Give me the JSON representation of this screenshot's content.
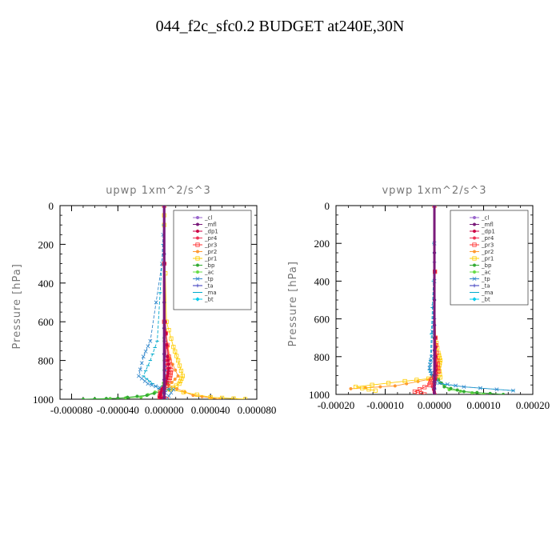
{
  "title": "044_f2c_sfc0.2  BUDGET at240E,30N",
  "legend": [
    {
      "name": "_cl",
      "color": "#9966cc",
      "marker": "circle"
    },
    {
      "name": "_mfl",
      "color": "#7a1a7a",
      "marker": "circle"
    },
    {
      "name": "_dp1",
      "color": "#cc0044",
      "marker": "circle"
    },
    {
      "name": "_pr4",
      "color": "#ee3355",
      "marker": "circle"
    },
    {
      "name": "_pr3",
      "color": "#ff3333",
      "marker": "square"
    },
    {
      "name": "_pr2",
      "color": "#ff9933",
      "marker": "circle"
    },
    {
      "name": "_pr1",
      "color": "#ffcc00",
      "marker": "square"
    },
    {
      "name": "_bp",
      "color": "#33aa33",
      "marker": "circle"
    },
    {
      "name": "_ac",
      "color": "#66dd44",
      "marker": "circle"
    },
    {
      "name": "_tp",
      "color": "#3388cc",
      "marker": "x"
    },
    {
      "name": "_ta",
      "color": "#3333bb",
      "marker": "plus"
    },
    {
      "name": "_ma",
      "color": "#00aacc",
      "marker": "dash"
    },
    {
      "name": "_bt",
      "color": "#00ccee",
      "marker": "diamond"
    }
  ],
  "chart_data": [
    {
      "type": "line",
      "title": "upwp   1xm^2/s^3",
      "ylabel": "Pressure [hPa]",
      "xlabel": "",
      "xlim": [
        -9e-05,
        8e-05
      ],
      "ylim": [
        1000,
        0
      ],
      "xticks": [
        -8e-05,
        -4e-05,
        0.0,
        4e-05,
        8e-05
      ],
      "xtick_labels": [
        "-0.000080",
        "-0.000040",
        "0.000000",
        "0.000040",
        "0.000080"
      ],
      "yticks": [
        0,
        200,
        400,
        600,
        800,
        1000
      ],
      "ytick_labels": [
        "0",
        "200",
        "400",
        "600",
        "800",
        "1000"
      ],
      "grid": false,
      "legend_position": "top-right",
      "series": [
        {
          "name": "_cl",
          "x": [
            0,
            0,
            0,
            0
          ],
          "y": [
            0,
            500,
            900,
            1000
          ]
        },
        {
          "name": "_mfl",
          "x": [
            0,
            0,
            0,
            0
          ],
          "y": [
            0,
            500,
            900,
            1000
          ]
        },
        {
          "name": "_dp1",
          "x": [
            0,
            1e-06,
            3e-06,
            4e-06,
            3e-06,
            1e-06,
            -2e-06,
            -4e-06,
            0
          ],
          "y": [
            0,
            600,
            780,
            840,
            880,
            920,
            950,
            990,
            1000
          ]
        },
        {
          "name": "_pr4",
          "x": [
            0,
            0,
            2e-06,
            3e-06,
            1e-06,
            -3e-06,
            -2e-06
          ],
          "y": [
            0,
            600,
            800,
            860,
            920,
            970,
            1000
          ]
        },
        {
          "name": "_pr3",
          "x": [
            0,
            0,
            4e-06,
            6e-06,
            5e-06,
            2e-06,
            -3e-06,
            -4e-06,
            2e-06
          ],
          "y": [
            0,
            600,
            780,
            850,
            890,
            930,
            960,
            990,
            1000
          ]
        },
        {
          "name": "_pr2",
          "x": [
            0,
            0,
            5e-06,
            1.2e-05,
            4e-06,
            2.5e-05,
            4.8e-05
          ],
          "y": [
            0,
            600,
            790,
            880,
            930,
            980,
            1000
          ]
        },
        {
          "name": "_pr1",
          "x": [
            0,
            0,
            2e-06,
            8e-06,
            1.2e-05,
            1.6e-05,
            1.3e-05,
            5e-06,
            4e-05,
            7e-05
          ],
          "y": [
            0,
            100,
            600,
            730,
            800,
            880,
            920,
            950,
            990,
            1000
          ]
        },
        {
          "name": "_bp",
          "x": [
            0,
            0,
            0,
            4e-06,
            -1.5e-05,
            -4e-05,
            -7e-05
          ],
          "y": [
            0,
            600,
            850,
            950,
            980,
            995,
            1000
          ]
        },
        {
          "name": "_ac",
          "x": [
            0,
            0,
            0,
            -2e-06,
            -2e-05,
            -6e-05
          ],
          "y": [
            0,
            600,
            900,
            950,
            990,
            1000
          ]
        },
        {
          "name": "_tp",
          "x": [
            0,
            -2e-06,
            -1.2e-05,
            -1.8e-05,
            -2.2e-05,
            -1.4e-05,
            -4e-06,
            8e-06,
            2e-06
          ],
          "y": [
            0,
            300,
            700,
            780,
            880,
            920,
            940,
            950,
            1000
          ]
        },
        {
          "name": "_ta",
          "x": [
            0,
            0,
            2e-06,
            1e-06,
            0
          ],
          "y": [
            0,
            600,
            900,
            960,
            1000
          ]
        },
        {
          "name": "_ma",
          "x": [
            0,
            -1e-06,
            -6e-06,
            -1.2e-05,
            -1.8e-05,
            -1e-05,
            -2e-06,
            2e-06
          ],
          "y": [
            0,
            200,
            700,
            800,
            880,
            920,
            960,
            1000
          ]
        },
        {
          "name": "_bt",
          "x": [
            0,
            0,
            0,
            0
          ],
          "y": [
            0,
            500,
            900,
            1000
          ]
        }
      ]
    },
    {
      "type": "line",
      "title": "vpwp   1xm^2/s^3",
      "ylabel": "Pressure [hPa]",
      "xlabel": "",
      "xlim": [
        -0.0002,
        0.0002
      ],
      "ylim": [
        1000,
        0
      ],
      "xticks": [
        -0.0002,
        -0.0001,
        0.0,
        0.0001,
        0.0002
      ],
      "xtick_labels": [
        "-0.00020",
        "-0.00010",
        "0.00000",
        "0.00010",
        "0.00020"
      ],
      "yticks": [
        0,
        200,
        400,
        600,
        800,
        1000
      ],
      "ytick_labels": [
        "0",
        "200",
        "400",
        "600",
        "800",
        "1000"
      ],
      "grid": false,
      "legend_position": "top-right",
      "series": [
        {
          "name": "_cl",
          "x": [
            0,
            0,
            0,
            0
          ],
          "y": [
            0,
            500,
            900,
            1000
          ]
        },
        {
          "name": "_mfl",
          "x": [
            0,
            0,
            0,
            0
          ],
          "y": [
            0,
            500,
            900,
            1000
          ]
        },
        {
          "name": "_dp1",
          "x": [
            0,
            2e-06,
            3e-06,
            2e-06,
            -1e-06,
            0
          ],
          "y": [
            0,
            700,
            850,
            920,
            970,
            1000
          ]
        },
        {
          "name": "_pr4",
          "x": [
            0,
            2e-06,
            4e-06,
            3e-06,
            -4e-06,
            2e-06
          ],
          "y": [
            0,
            700,
            840,
            910,
            960,
            1000
          ]
        },
        {
          "name": "_pr3",
          "x": [
            0,
            2e-06,
            6e-06,
            8e-06,
            -5e-06,
            -1e-05,
            -4e-05,
            -2e-05
          ],
          "y": [
            0,
            700,
            820,
            880,
            920,
            950,
            985,
            1000
          ]
        },
        {
          "name": "_pr2",
          "x": [
            0,
            2e-06,
            5e-06,
            -1e-05,
            -8e-05,
            -0.00017
          ],
          "y": [
            0,
            700,
            860,
            920,
            955,
            970
          ]
        },
        {
          "name": "_pr1",
          "x": [
            0,
            2e-06,
            8e-06,
            1.2e-05,
            9e-06,
            1.2e-05,
            -6e-05,
            -0.00016,
            -0.00012
          ],
          "y": [
            0,
            700,
            780,
            820,
            860,
            910,
            930,
            960,
            980
          ]
        },
        {
          "name": "_bp",
          "x": [
            0,
            0,
            3e-06,
            2e-05,
            6e-05,
            0.00014
          ],
          "y": [
            0,
            700,
            900,
            960,
            985,
            1000
          ]
        },
        {
          "name": "_ac",
          "x": [
            0,
            0,
            2e-06,
            3e-05,
            0.0001
          ],
          "y": [
            0,
            700,
            920,
            975,
            1000
          ]
        },
        {
          "name": "_tp",
          "x": [
            0,
            0,
            -6e-06,
            -1e-05,
            -4e-06,
            1e-05,
            6e-05,
            0.00016
          ],
          "y": [
            0,
            400,
            800,
            860,
            900,
            940,
            960,
            980
          ]
        },
        {
          "name": "_ta",
          "x": [
            0,
            0,
            1e-06,
            0
          ],
          "y": [
            0,
            600,
            920,
            1000
          ]
        },
        {
          "name": "_ma",
          "x": [
            0,
            -2e-06,
            -8e-06,
            -1e-05,
            -4e-06,
            2e-06,
            6e-05,
            0.00016
          ],
          "y": [
            0,
            400,
            820,
            870,
            910,
            940,
            960,
            980
          ]
        },
        {
          "name": "_bt",
          "x": [
            0,
            0,
            0,
            0
          ],
          "y": [
            0,
            500,
            900,
            1000
          ]
        }
      ]
    }
  ]
}
